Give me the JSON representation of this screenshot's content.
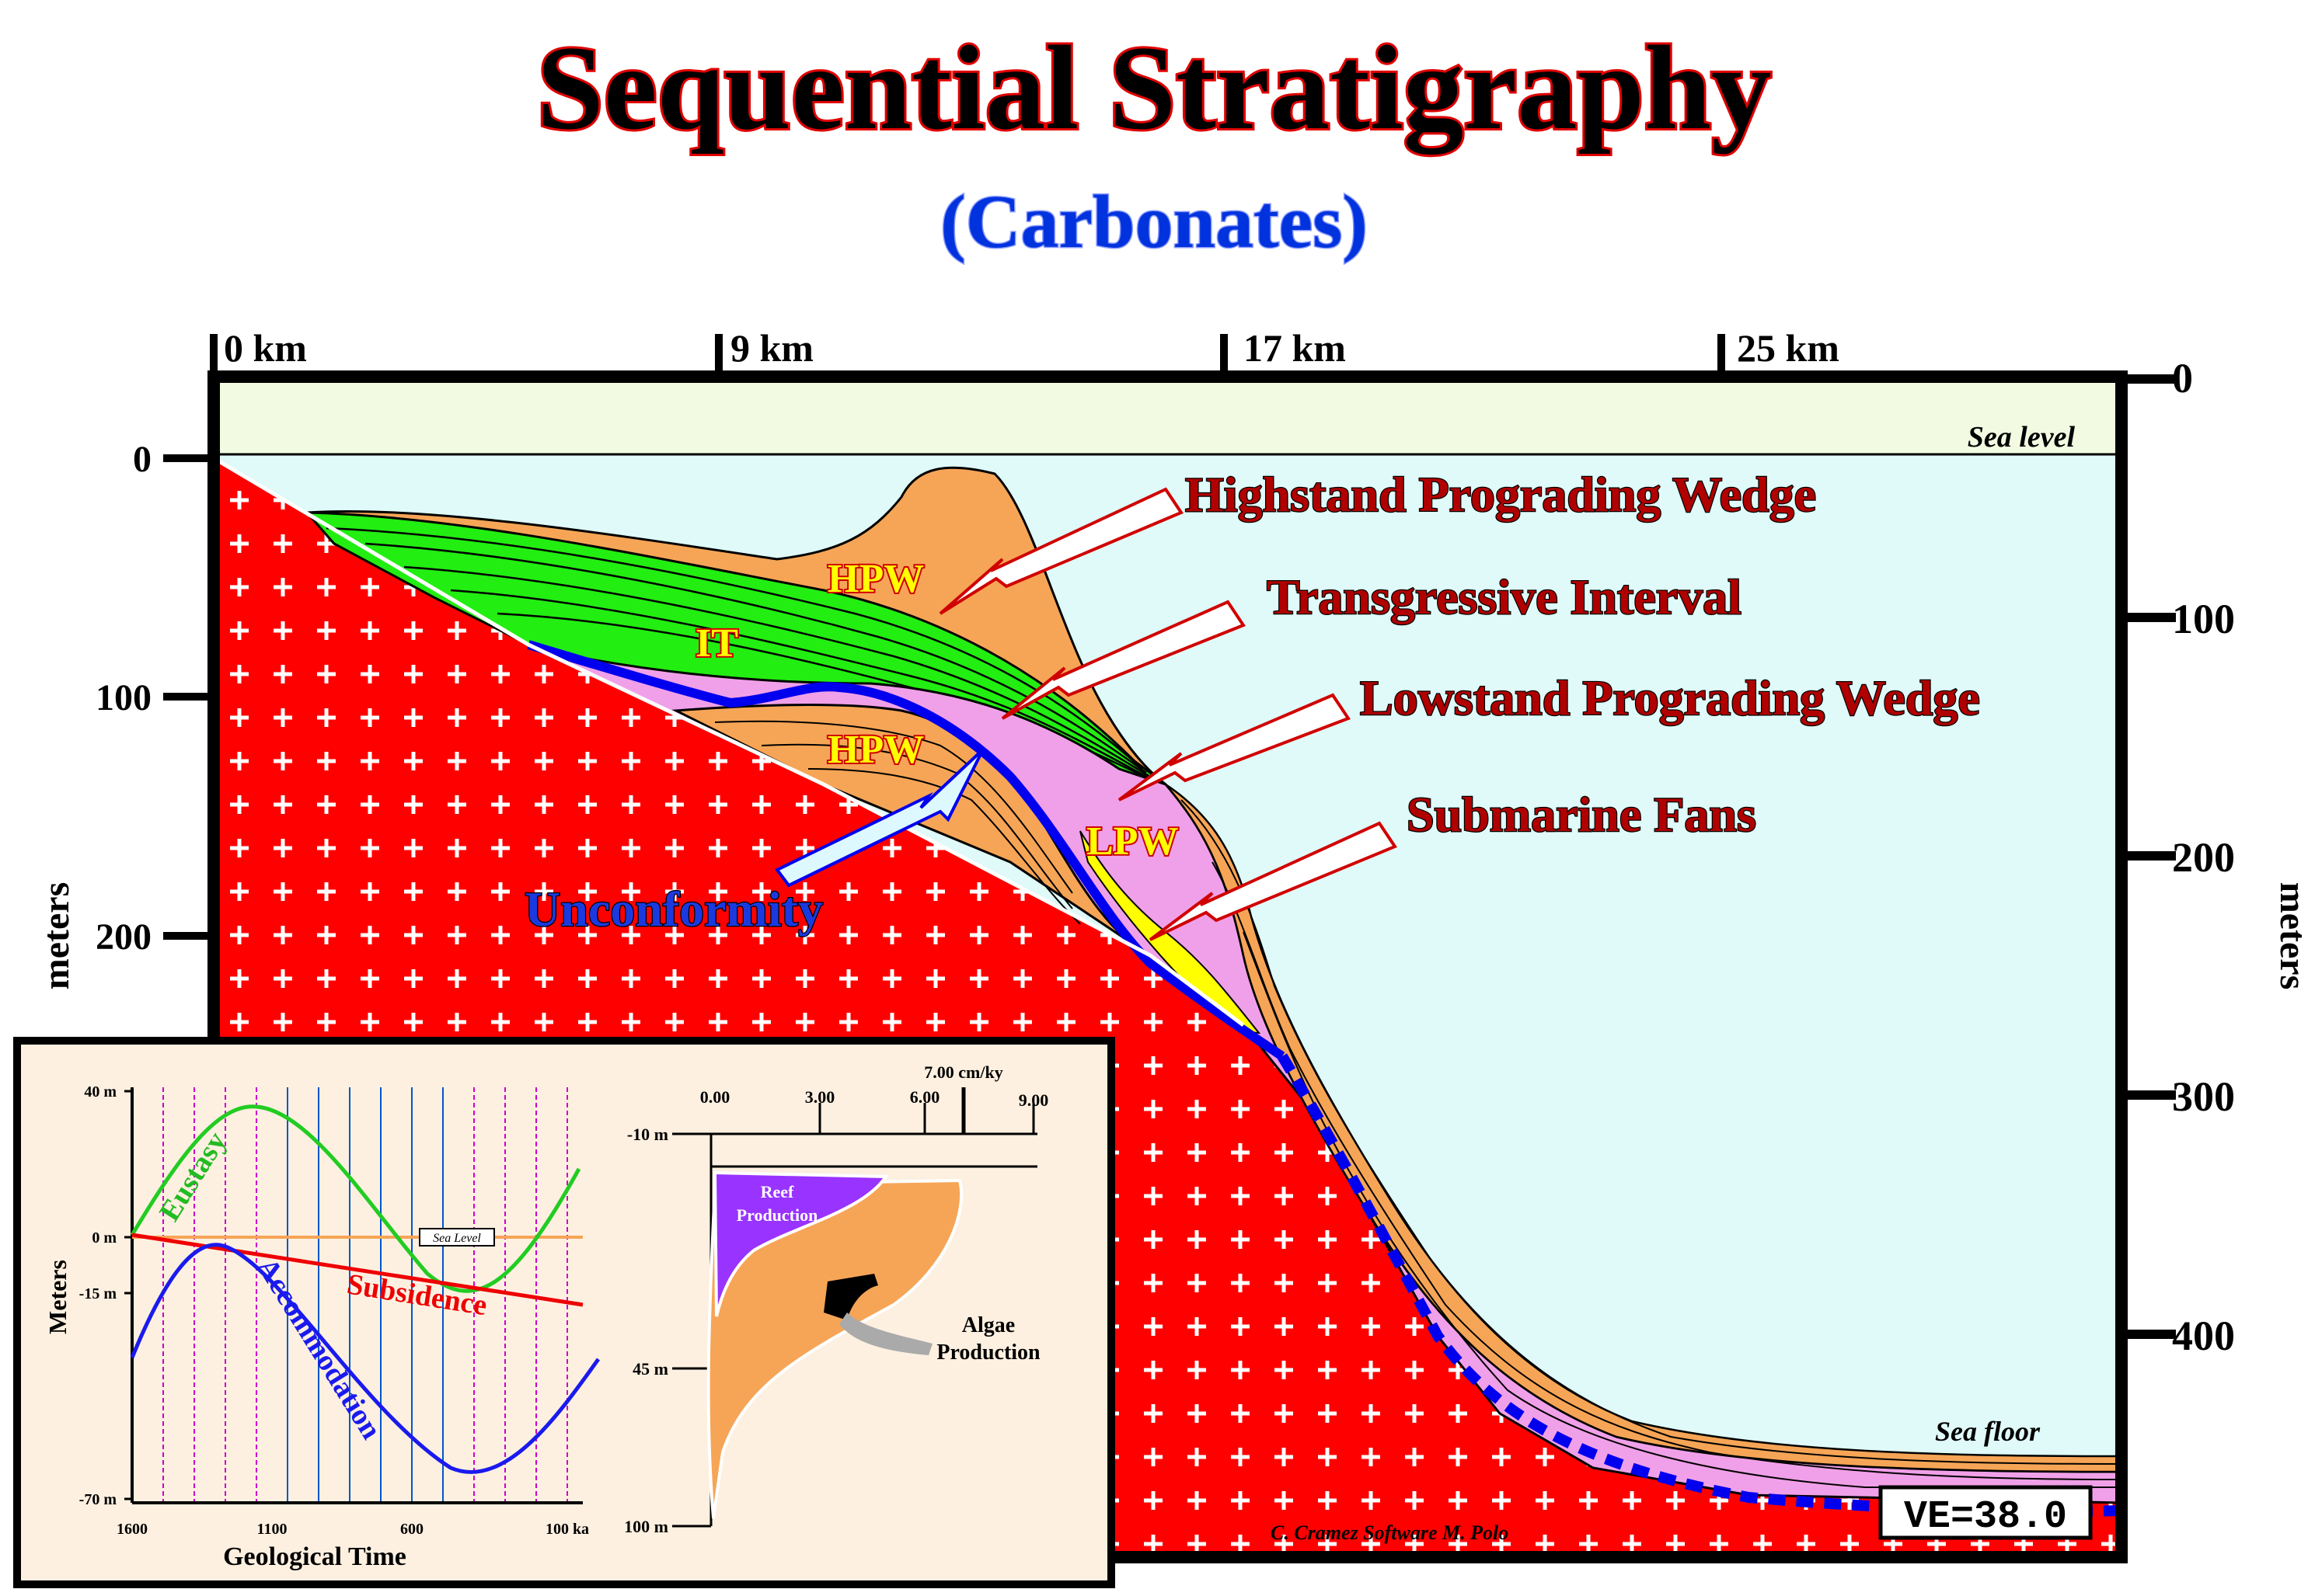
{
  "title": "Sequential Stratigraphy",
  "subtitle": "(Carbonates)",
  "colors": {
    "title_fill": "#000000",
    "title_stroke": "#e00000",
    "subtitle_fill": "#0033dd",
    "basement": "#ff0000",
    "sea": "#dffaf8",
    "air": "#f2fbe2",
    "hpw": "#f6a556",
    "it": "#22ee11",
    "lpw": "#f0a0e8",
    "fans": "#ffff00",
    "unconformity": "#0000ee",
    "label_red": "#b00000",
    "inset_bg": "#fdf0e0"
  },
  "scale": {
    "top_ticks": [
      "0 km",
      "9 km",
      "17 km",
      "25 km"
    ],
    "left_ticks": [
      "0",
      "100",
      "200"
    ],
    "right_ticks": [
      "0",
      "100",
      "200",
      "300",
      "400"
    ],
    "left_axis_label": "meters",
    "right_axis_label": "meters"
  },
  "cross_section": {
    "sea_level_label": "Sea level",
    "sea_floor_label": "Sea floor",
    "ve_label": "VE=38.0",
    "credit": "C. Cramez Software M. Polo",
    "unit_labels": {
      "hpw_upper": "HPW",
      "it": "IT",
      "hpw_lower": "HPW",
      "lpw": "LPW"
    },
    "annotations": [
      "Highstand Prograding Wedge",
      "Transgressive Interval",
      "Lowstand Prograding Wedge",
      "Submarine Fans"
    ],
    "unconformity_label": "Unconformity"
  },
  "inset": {
    "y_axis_label": "Meters",
    "x_axis_label": "Geological Time",
    "y_ticks": [
      "40 m",
      "0 m",
      "-15 m",
      "-70 m"
    ],
    "x_ticks": [
      "1600",
      "1100",
      "600",
      "100 ka"
    ],
    "sea_level_tag": "Sea Level",
    "curve_labels": {
      "eustasy": "Eustasy",
      "subsidence": "Subsidence",
      "accommodation": "Accommodation"
    },
    "production": {
      "rate_ticks": [
        "0.00",
        "3.00",
        "6.00",
        "9.00"
      ],
      "rate_marker": "7.00 cm/ky",
      "depth_ticks": [
        "-10 m",
        "45 m",
        "100 m"
      ],
      "reef_label_1": "Reef",
      "reef_label_2": "Production",
      "algae_label_1": "Algae",
      "algae_label_2": "Production"
    }
  }
}
